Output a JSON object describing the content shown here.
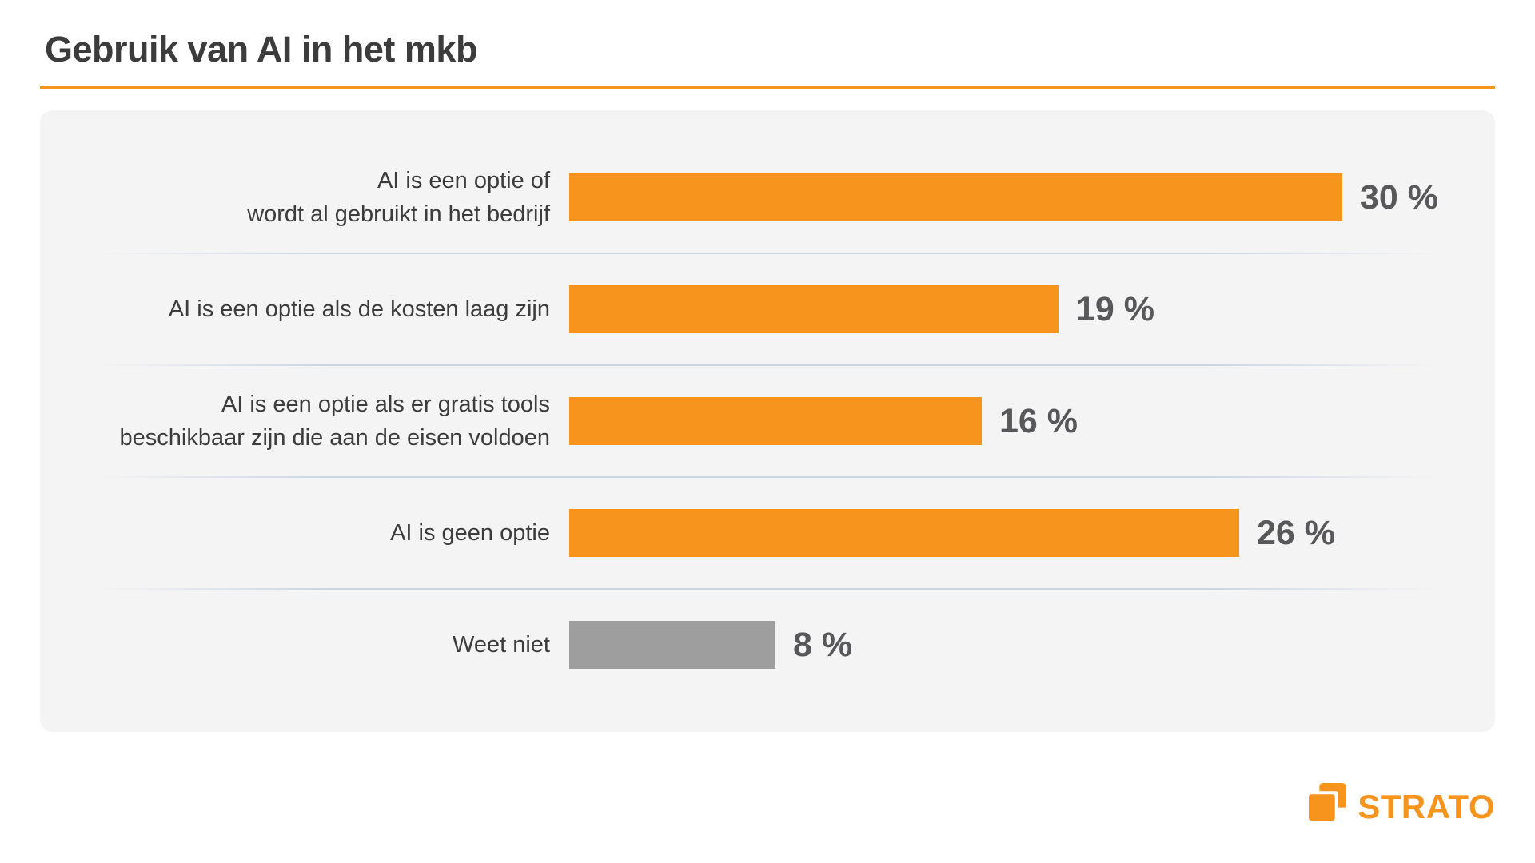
{
  "page": {
    "title": "Gebruik van AI in het mkb",
    "brand": "STRATO"
  },
  "colors": {
    "accent_orange": "#F7941D",
    "bar_gray": "#9E9E9E",
    "panel_bg": "#F4F4F4",
    "title_text": "#3C3C3C",
    "label_text": "#3C3C3C",
    "value_text": "#58585A",
    "separator": "#C9D2E2"
  },
  "chart_data": {
    "type": "bar",
    "orientation": "horizontal",
    "title": "Gebruik van AI in het mkb",
    "unit": "%",
    "xlim": [
      0,
      30
    ],
    "grid": false,
    "legend": false,
    "categories": [
      "AI is een optie of wordt al gebruikt in het bedrijf",
      "AI is een optie als de kosten laag zijn",
      "AI is een optie als er gratis tools beschikbaar zijn die aan de eisen voldoen",
      "AI is geen optie",
      "Weet niet"
    ],
    "values": [
      30,
      19,
      16,
      26,
      8
    ],
    "bars": [
      {
        "label_lines": [
          "AI is een optie of",
          "wordt al gebruikt in het bedrijf"
        ],
        "value": 30,
        "value_label": "30 %",
        "color": "#F7941D"
      },
      {
        "label_lines": [
          "AI is een optie als de kosten laag zijn"
        ],
        "value": 19,
        "value_label": "19 %",
        "color": "#F7941D"
      },
      {
        "label_lines": [
          "AI is een optie als er gratis tools",
          "beschikbaar zijn die aan de eisen voldoen"
        ],
        "value": 16,
        "value_label": "16 %",
        "color": "#F7941D"
      },
      {
        "label_lines": [
          "AI is geen optie"
        ],
        "value": 26,
        "value_label": "26 %",
        "color": "#F7941D"
      },
      {
        "label_lines": [
          "Weet niet"
        ],
        "value": 8,
        "value_label": "8 %",
        "color": "#9E9E9E"
      }
    ]
  }
}
